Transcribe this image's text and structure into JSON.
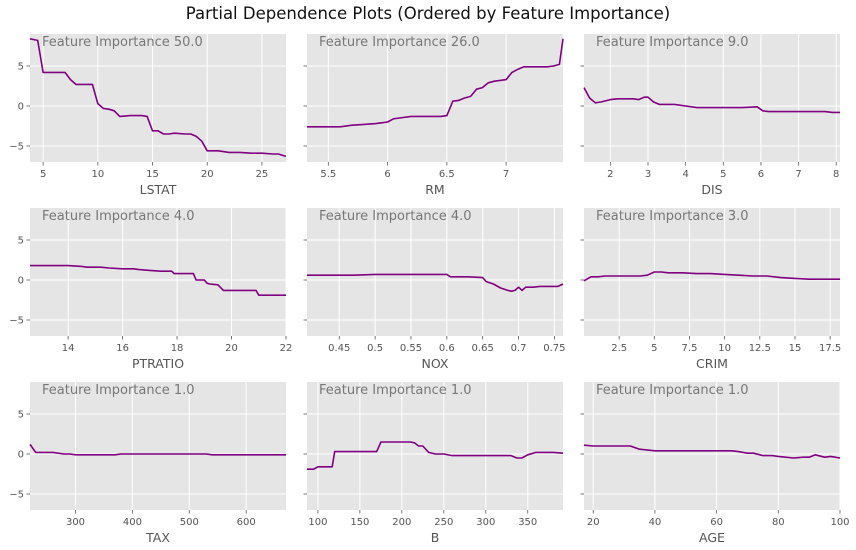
{
  "title": "Partial Dependence Plots (Ordered by Feature Importance)",
  "chart_data": [
    {
      "type": "line",
      "importance_label": "Feature Importance 50.0",
      "xlabel": "LSTAT",
      "xlim": [
        3.8,
        27.2
      ],
      "ylim": [
        -7,
        9
      ],
      "xticks": [
        5,
        10,
        15,
        20,
        25
      ],
      "yticks": [
        -5,
        0,
        5
      ],
      "x": [
        3.8,
        4.5,
        5,
        5.5,
        6,
        7,
        7.5,
        8,
        9,
        9.5,
        10,
        10.5,
        11,
        11.5,
        12,
        13,
        14,
        14.5,
        15,
        15.5,
        16,
        16.5,
        17,
        18,
        18.5,
        19,
        19.5,
        20,
        21,
        22,
        23,
        24,
        25,
        26,
        26.5,
        27.2
      ],
      "y": [
        8.4,
        8.2,
        4.2,
        4.2,
        4.2,
        4.2,
        3.3,
        2.7,
        2.7,
        2.7,
        0.3,
        -0.3,
        -0.4,
        -0.6,
        -1.3,
        -1.2,
        -1.2,
        -1.3,
        -3.1,
        -3.1,
        -3.5,
        -3.5,
        -3.4,
        -3.5,
        -3.5,
        -3.8,
        -4.4,
        -5.6,
        -5.6,
        -5.8,
        -5.8,
        -5.9,
        -5.9,
        -6.0,
        -6.0,
        -6.3
      ]
    },
    {
      "type": "line",
      "importance_label": "Feature Importance 26.0",
      "xlabel": "RM",
      "xlim": [
        5.32,
        7.48
      ],
      "ylim": [
        -7,
        9
      ],
      "xticks": [
        5.5,
        6.0,
        6.5,
        7.0
      ],
      "yticks": [
        -5,
        0,
        5
      ],
      "x": [
        5.32,
        5.5,
        5.6,
        5.7,
        5.8,
        5.9,
        5.95,
        6.0,
        6.05,
        6.1,
        6.2,
        6.3,
        6.4,
        6.45,
        6.5,
        6.55,
        6.6,
        6.65,
        6.7,
        6.75,
        6.8,
        6.85,
        6.9,
        6.95,
        7.0,
        7.05,
        7.1,
        7.15,
        7.2,
        7.25,
        7.3,
        7.35,
        7.4,
        7.45,
        7.48
      ],
      "y": [
        -2.6,
        -2.6,
        -2.6,
        -2.4,
        -2.3,
        -2.2,
        -2.1,
        -2.0,
        -1.6,
        -1.5,
        -1.3,
        -1.3,
        -1.3,
        -1.3,
        -1.2,
        0.6,
        0.7,
        1.0,
        1.2,
        2.1,
        2.3,
        2.9,
        3.1,
        3.2,
        3.3,
        4.2,
        4.6,
        4.9,
        4.9,
        4.9,
        4.9,
        4.9,
        5.0,
        5.2,
        8.4
      ]
    },
    {
      "type": "line",
      "importance_label": "Feature Importance 9.0",
      "xlabel": "DIS",
      "xlim": [
        1.3,
        8.1
      ],
      "ylim": [
        -7,
        9
      ],
      "xticks": [
        2,
        3,
        4,
        5,
        6,
        7,
        8
      ],
      "yticks": [
        -5,
        0,
        5
      ],
      "x": [
        1.3,
        1.45,
        1.6,
        1.75,
        2.0,
        2.2,
        2.4,
        2.6,
        2.75,
        2.9,
        3.0,
        3.15,
        3.3,
        3.5,
        3.7,
        4.0,
        4.3,
        4.5,
        5.0,
        5.5,
        5.9,
        6.05,
        6.2,
        6.4,
        6.7,
        7.0,
        7.4,
        7.7,
        7.9,
        8.1
      ],
      "y": [
        2.3,
        1.0,
        0.4,
        0.5,
        0.8,
        0.9,
        0.9,
        0.9,
        0.8,
        1.1,
        1.1,
        0.5,
        0.2,
        0.2,
        0.2,
        0.0,
        -0.2,
        -0.2,
        -0.2,
        -0.2,
        -0.1,
        -0.6,
        -0.7,
        -0.7,
        -0.7,
        -0.7,
        -0.7,
        -0.7,
        -0.8,
        -0.8
      ]
    },
    {
      "type": "line",
      "importance_label": "Feature Importance 4.0",
      "xlabel": "PTRATIO",
      "xlim": [
        12.6,
        22.0
      ],
      "ylim": [
        -7,
        9
      ],
      "xticks": [
        14,
        16,
        18,
        20,
        22
      ],
      "yticks": [
        -5,
        0,
        5
      ],
      "x": [
        12.6,
        13.5,
        14.0,
        14.5,
        14.7,
        15.2,
        15.5,
        16.0,
        16.4,
        16.6,
        17.0,
        17.4,
        17.8,
        17.9,
        18.4,
        18.6,
        18.7,
        19.0,
        19.1,
        19.2,
        19.5,
        19.7,
        20.2,
        20.6,
        20.9,
        21.0,
        21.3,
        22.0
      ],
      "y": [
        1.8,
        1.8,
        1.8,
        1.7,
        1.6,
        1.6,
        1.5,
        1.4,
        1.4,
        1.3,
        1.2,
        1.1,
        1.1,
        0.8,
        0.8,
        0.8,
        0.0,
        0.0,
        -0.4,
        -0.5,
        -0.6,
        -1.3,
        -1.3,
        -1.3,
        -1.3,
        -1.9,
        -1.9,
        -1.9
      ]
    },
    {
      "type": "line",
      "importance_label": "Feature Importance 4.0",
      "xlabel": "NOX",
      "xlim": [
        0.405,
        0.762
      ],
      "ylim": [
        -7,
        9
      ],
      "xticks": [
        0.45,
        0.5,
        0.55,
        0.6,
        0.65,
        0.7,
        0.75
      ],
      "yticks": [
        -5,
        0,
        5
      ],
      "x": [
        0.405,
        0.43,
        0.45,
        0.47,
        0.5,
        0.52,
        0.55,
        0.58,
        0.6,
        0.605,
        0.62,
        0.63,
        0.65,
        0.655,
        0.665,
        0.675,
        0.685,
        0.69,
        0.695,
        0.7,
        0.705,
        0.71,
        0.72,
        0.73,
        0.745,
        0.755,
        0.762
      ],
      "y": [
        0.6,
        0.6,
        0.6,
        0.6,
        0.7,
        0.7,
        0.7,
        0.7,
        0.7,
        0.4,
        0.4,
        0.4,
        0.3,
        -0.2,
        -0.5,
        -1.0,
        -1.3,
        -1.4,
        -1.3,
        -0.9,
        -1.3,
        -0.9,
        -0.9,
        -0.8,
        -0.8,
        -0.8,
        -0.5
      ]
    },
    {
      "type": "line",
      "importance_label": "Feature Importance 3.0",
      "xlabel": "CRIM",
      "xlim": [
        0,
        18.2
      ],
      "ylim": [
        -7,
        9
      ],
      "xticks": [
        2.5,
        5.0,
        7.5,
        10.0,
        12.5,
        15.0,
        17.5
      ],
      "yticks": [
        -5,
        0,
        5
      ],
      "x": [
        0,
        0.5,
        1.0,
        1.5,
        2.0,
        3.0,
        4.0,
        4.5,
        5.0,
        5.5,
        6.0,
        7.0,
        8.0,
        9.0,
        10.0,
        11.0,
        12.0,
        13.0,
        14.0,
        15.0,
        16.0,
        17.0,
        18.2
      ],
      "y": [
        -0.1,
        0.4,
        0.4,
        0.5,
        0.5,
        0.5,
        0.5,
        0.6,
        1.0,
        1.0,
        0.9,
        0.9,
        0.8,
        0.8,
        0.7,
        0.6,
        0.5,
        0.5,
        0.3,
        0.2,
        0.1,
        0.1,
        0.1
      ]
    },
    {
      "type": "line",
      "importance_label": "Feature Importance 1.0",
      "xlabel": "TAX",
      "xlim": [
        220,
        670
      ],
      "ylim": [
        -7,
        9
      ],
      "xticks": [
        300,
        400,
        500,
        600
      ],
      "yticks": [
        -5,
        0,
        5
      ],
      "x": [
        220,
        230,
        250,
        260,
        280,
        290,
        300,
        350,
        370,
        380,
        400,
        420,
        450,
        500,
        530,
        540,
        560,
        600,
        640,
        670
      ],
      "y": [
        1.2,
        0.2,
        0.2,
        0.2,
        0.0,
        0.0,
        -0.1,
        -0.1,
        -0.1,
        0.0,
        0.0,
        0.0,
        0.0,
        0.0,
        0.0,
        -0.1,
        -0.1,
        -0.1,
        -0.1,
        -0.1
      ]
    },
    {
      "type": "line",
      "importance_label": "Feature Importance 1.0",
      "xlabel": "B",
      "xlim": [
        87,
        392
      ],
      "ylim": [
        -7,
        9
      ],
      "xticks": [
        100,
        150,
        200,
        250,
        300,
        350
      ],
      "yticks": [
        -5,
        0,
        5
      ],
      "x": [
        87,
        95,
        100,
        108,
        117,
        120,
        140,
        160,
        170,
        175,
        180,
        190,
        210,
        215,
        220,
        225,
        232,
        240,
        250,
        260,
        280,
        300,
        320,
        330,
        337,
        343,
        350,
        360,
        370,
        380,
        392
      ],
      "y": [
        -1.9,
        -1.9,
        -1.6,
        -1.6,
        -1.6,
        0.3,
        0.3,
        0.3,
        0.3,
        1.5,
        1.5,
        1.5,
        1.5,
        1.4,
        1.0,
        1.0,
        0.2,
        0.0,
        0.0,
        -0.2,
        -0.2,
        -0.2,
        -0.2,
        -0.2,
        -0.5,
        -0.5,
        -0.1,
        0.2,
        0.2,
        0.2,
        0.1
      ]
    },
    {
      "type": "line",
      "importance_label": "Feature Importance 1.0",
      "xlabel": "AGE",
      "xlim": [
        17,
        100
      ],
      "ylim": [
        -7,
        9
      ],
      "xticks": [
        20,
        40,
        60,
        80,
        100
      ],
      "yticks": [
        -5,
        0,
        5
      ],
      "x": [
        17,
        20,
        25,
        30,
        32,
        35,
        40,
        45,
        50,
        55,
        60,
        65,
        67,
        70,
        72,
        75,
        78,
        80,
        85,
        88,
        90,
        92,
        95,
        97,
        100
      ],
      "y": [
        1.1,
        1.0,
        1.0,
        1.0,
        1.0,
        0.6,
        0.4,
        0.4,
        0.4,
        0.4,
        0.4,
        0.4,
        0.3,
        0.1,
        0.1,
        -0.2,
        -0.2,
        -0.3,
        -0.5,
        -0.4,
        -0.4,
        -0.1,
        -0.4,
        -0.3,
        -0.5
      ]
    }
  ],
  "colors": {
    "line": "#800080",
    "panel": "#e5e5e5",
    "grid": "#ffffff"
  }
}
